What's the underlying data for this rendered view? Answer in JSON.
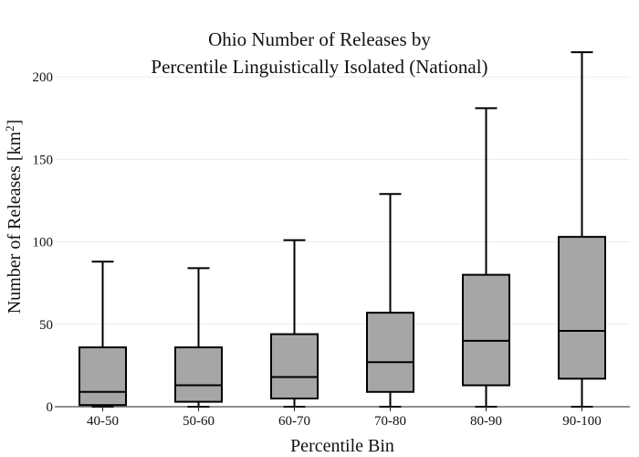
{
  "chart_data": {
    "type": "box",
    "title_line1": "Ohio Number of Releases by",
    "title_line2": "Percentile Linguistically Isolated (National)",
    "xlabel": "Percentile Bin",
    "ylabel_main": "Number of Releases  [km",
    "ylabel_sup": "2",
    "ylabel_end": "]",
    "ylim": [
      0,
      230
    ],
    "yticks": [
      0,
      50,
      100,
      150,
      200
    ],
    "grid": true,
    "box_color": "#a6a6a6",
    "categories": [
      "40-50",
      "50-60",
      "60-70",
      "70-80",
      "80-90",
      "90-100"
    ],
    "boxes": [
      {
        "min": 0,
        "q1": 1,
        "median": 9,
        "q3": 36,
        "max": 88
      },
      {
        "min": 0,
        "q1": 3,
        "median": 13,
        "q3": 36,
        "max": 84
      },
      {
        "min": 0,
        "q1": 5,
        "median": 18,
        "q3": 44,
        "max": 101
      },
      {
        "min": 0,
        "q1": 9,
        "median": 27,
        "q3": 57,
        "max": 129
      },
      {
        "min": 0,
        "q1": 13,
        "median": 40,
        "q3": 80,
        "max": 181
      },
      {
        "min": 0,
        "q1": 17,
        "median": 46,
        "q3": 103,
        "max": 215
      }
    ]
  }
}
